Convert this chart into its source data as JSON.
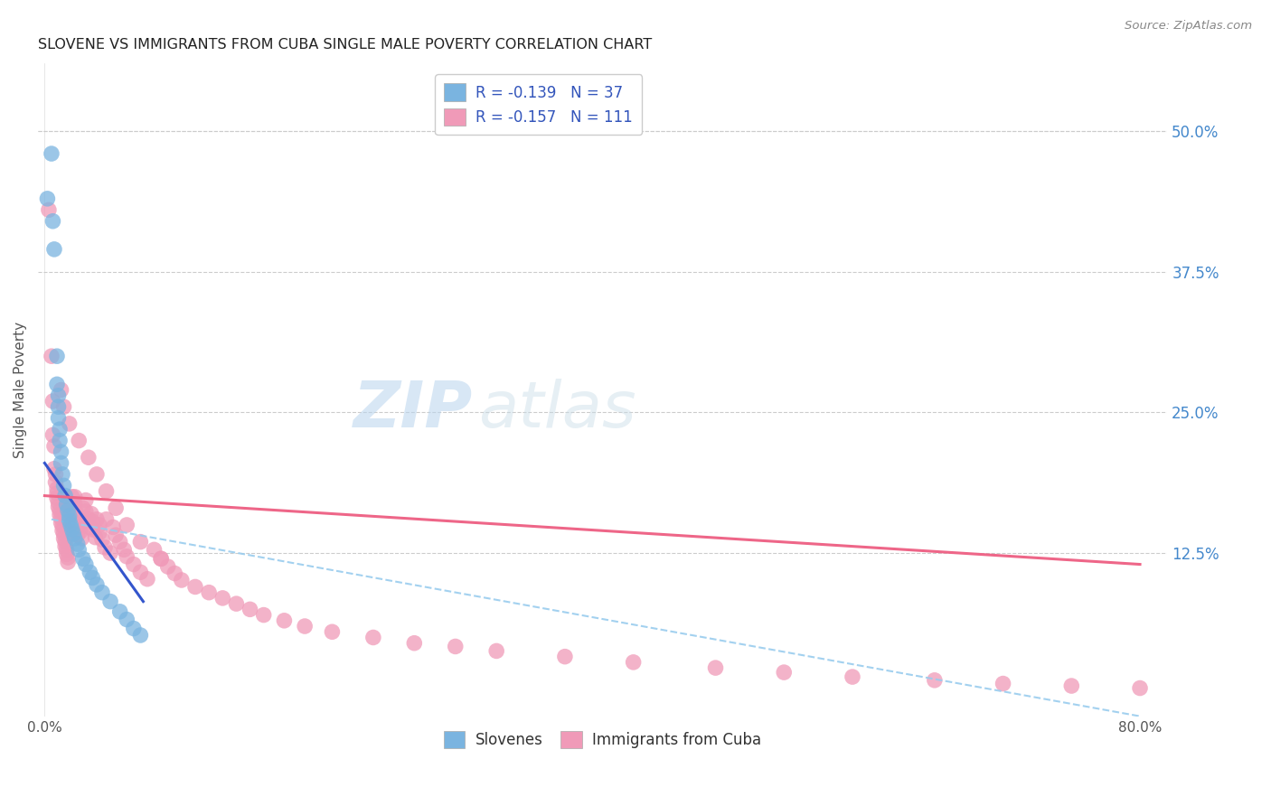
{
  "title": "SLOVENE VS IMMIGRANTS FROM CUBA SINGLE MALE POVERTY CORRELATION CHART",
  "source": "Source: ZipAtlas.com",
  "ylabel": "Single Male Poverty",
  "xlim": [
    -0.005,
    0.82
  ],
  "ylim": [
    -0.02,
    0.56
  ],
  "ytick_positions": [
    0.125,
    0.25,
    0.375,
    0.5
  ],
  "ytick_labels_right": [
    "12.5%",
    "25.0%",
    "37.5%",
    "50.0%"
  ],
  "slovene_color": "#7ab4e0",
  "cuba_color": "#f09ab8",
  "slovene_line_color": "#3355cc",
  "cuba_line_color": "#ee6688",
  "dashed_line_color": "#99ccee",
  "background_color": "#ffffff",
  "grid_color": "#cccccc",
  "slovene_scatter": {
    "x": [
      0.005,
      0.006,
      0.007,
      0.009,
      0.009,
      0.01,
      0.01,
      0.01,
      0.011,
      0.011,
      0.012,
      0.012,
      0.013,
      0.014,
      0.015,
      0.016,
      0.017,
      0.018,
      0.018,
      0.019,
      0.02,
      0.021,
      0.022,
      0.024,
      0.025,
      0.028,
      0.03,
      0.033,
      0.035,
      0.038,
      0.042,
      0.048,
      0.055,
      0.06,
      0.065,
      0.07,
      0.002
    ],
    "y": [
      0.48,
      0.42,
      0.395,
      0.3,
      0.275,
      0.265,
      0.255,
      0.245,
      0.235,
      0.225,
      0.215,
      0.205,
      0.195,
      0.185,
      0.176,
      0.168,
      0.163,
      0.158,
      0.154,
      0.15,
      0.146,
      0.142,
      0.138,
      0.133,
      0.128,
      0.12,
      0.115,
      0.108,
      0.103,
      0.097,
      0.09,
      0.082,
      0.073,
      0.066,
      0.058,
      0.052,
      0.44
    ]
  },
  "cuba_scatter": {
    "x": [
      0.003,
      0.005,
      0.006,
      0.006,
      0.007,
      0.007,
      0.008,
      0.008,
      0.009,
      0.009,
      0.009,
      0.01,
      0.01,
      0.011,
      0.011,
      0.012,
      0.012,
      0.013,
      0.013,
      0.014,
      0.014,
      0.015,
      0.015,
      0.016,
      0.016,
      0.017,
      0.017,
      0.018,
      0.018,
      0.019,
      0.019,
      0.02,
      0.02,
      0.02,
      0.021,
      0.021,
      0.022,
      0.022,
      0.023,
      0.023,
      0.024,
      0.024,
      0.025,
      0.026,
      0.026,
      0.027,
      0.028,
      0.03,
      0.03,
      0.032,
      0.033,
      0.034,
      0.035,
      0.035,
      0.037,
      0.038,
      0.04,
      0.04,
      0.042,
      0.044,
      0.045,
      0.048,
      0.05,
      0.052,
      0.055,
      0.058,
      0.06,
      0.065,
      0.07,
      0.075,
      0.08,
      0.085,
      0.09,
      0.095,
      0.1,
      0.11,
      0.12,
      0.13,
      0.14,
      0.15,
      0.16,
      0.175,
      0.19,
      0.21,
      0.24,
      0.27,
      0.3,
      0.33,
      0.38,
      0.43,
      0.49,
      0.54,
      0.59,
      0.65,
      0.7,
      0.75,
      0.8,
      0.012,
      0.014,
      0.018,
      0.025,
      0.032,
      0.038,
      0.045,
      0.052,
      0.06,
      0.07,
      0.085
    ],
    "y": [
      0.43,
      0.3,
      0.26,
      0.23,
      0.22,
      0.2,
      0.195,
      0.188,
      0.182,
      0.178,
      0.174,
      0.17,
      0.166,
      0.163,
      0.159,
      0.156,
      0.152,
      0.149,
      0.145,
      0.142,
      0.138,
      0.135,
      0.131,
      0.128,
      0.124,
      0.121,
      0.117,
      0.163,
      0.155,
      0.148,
      0.143,
      0.175,
      0.168,
      0.16,
      0.153,
      0.146,
      0.175,
      0.168,
      0.161,
      0.154,
      0.148,
      0.141,
      0.156,
      0.151,
      0.144,
      0.138,
      0.165,
      0.172,
      0.162,
      0.155,
      0.148,
      0.16,
      0.153,
      0.146,
      0.139,
      0.155,
      0.15,
      0.143,
      0.137,
      0.13,
      0.155,
      0.125,
      0.148,
      0.141,
      0.135,
      0.128,
      0.122,
      0.115,
      0.108,
      0.102,
      0.128,
      0.12,
      0.113,
      0.107,
      0.101,
      0.095,
      0.09,
      0.085,
      0.08,
      0.075,
      0.07,
      0.065,
      0.06,
      0.055,
      0.05,
      0.045,
      0.042,
      0.038,
      0.033,
      0.028,
      0.023,
      0.019,
      0.015,
      0.012,
      0.009,
      0.007,
      0.005,
      0.27,
      0.255,
      0.24,
      0.225,
      0.21,
      0.195,
      0.18,
      0.165,
      0.15,
      0.135,
      0.12
    ]
  },
  "slovene_line": {
    "x0": 0.0,
    "y0": 0.205,
    "x1": 0.072,
    "y1": 0.082
  },
  "cuba_line": {
    "x0": 0.0,
    "y0": 0.176,
    "x1": 0.8,
    "y1": 0.115
  },
  "dashed_line": {
    "x0": 0.005,
    "y0": 0.155,
    "x1": 0.8,
    "y1": -0.02
  }
}
